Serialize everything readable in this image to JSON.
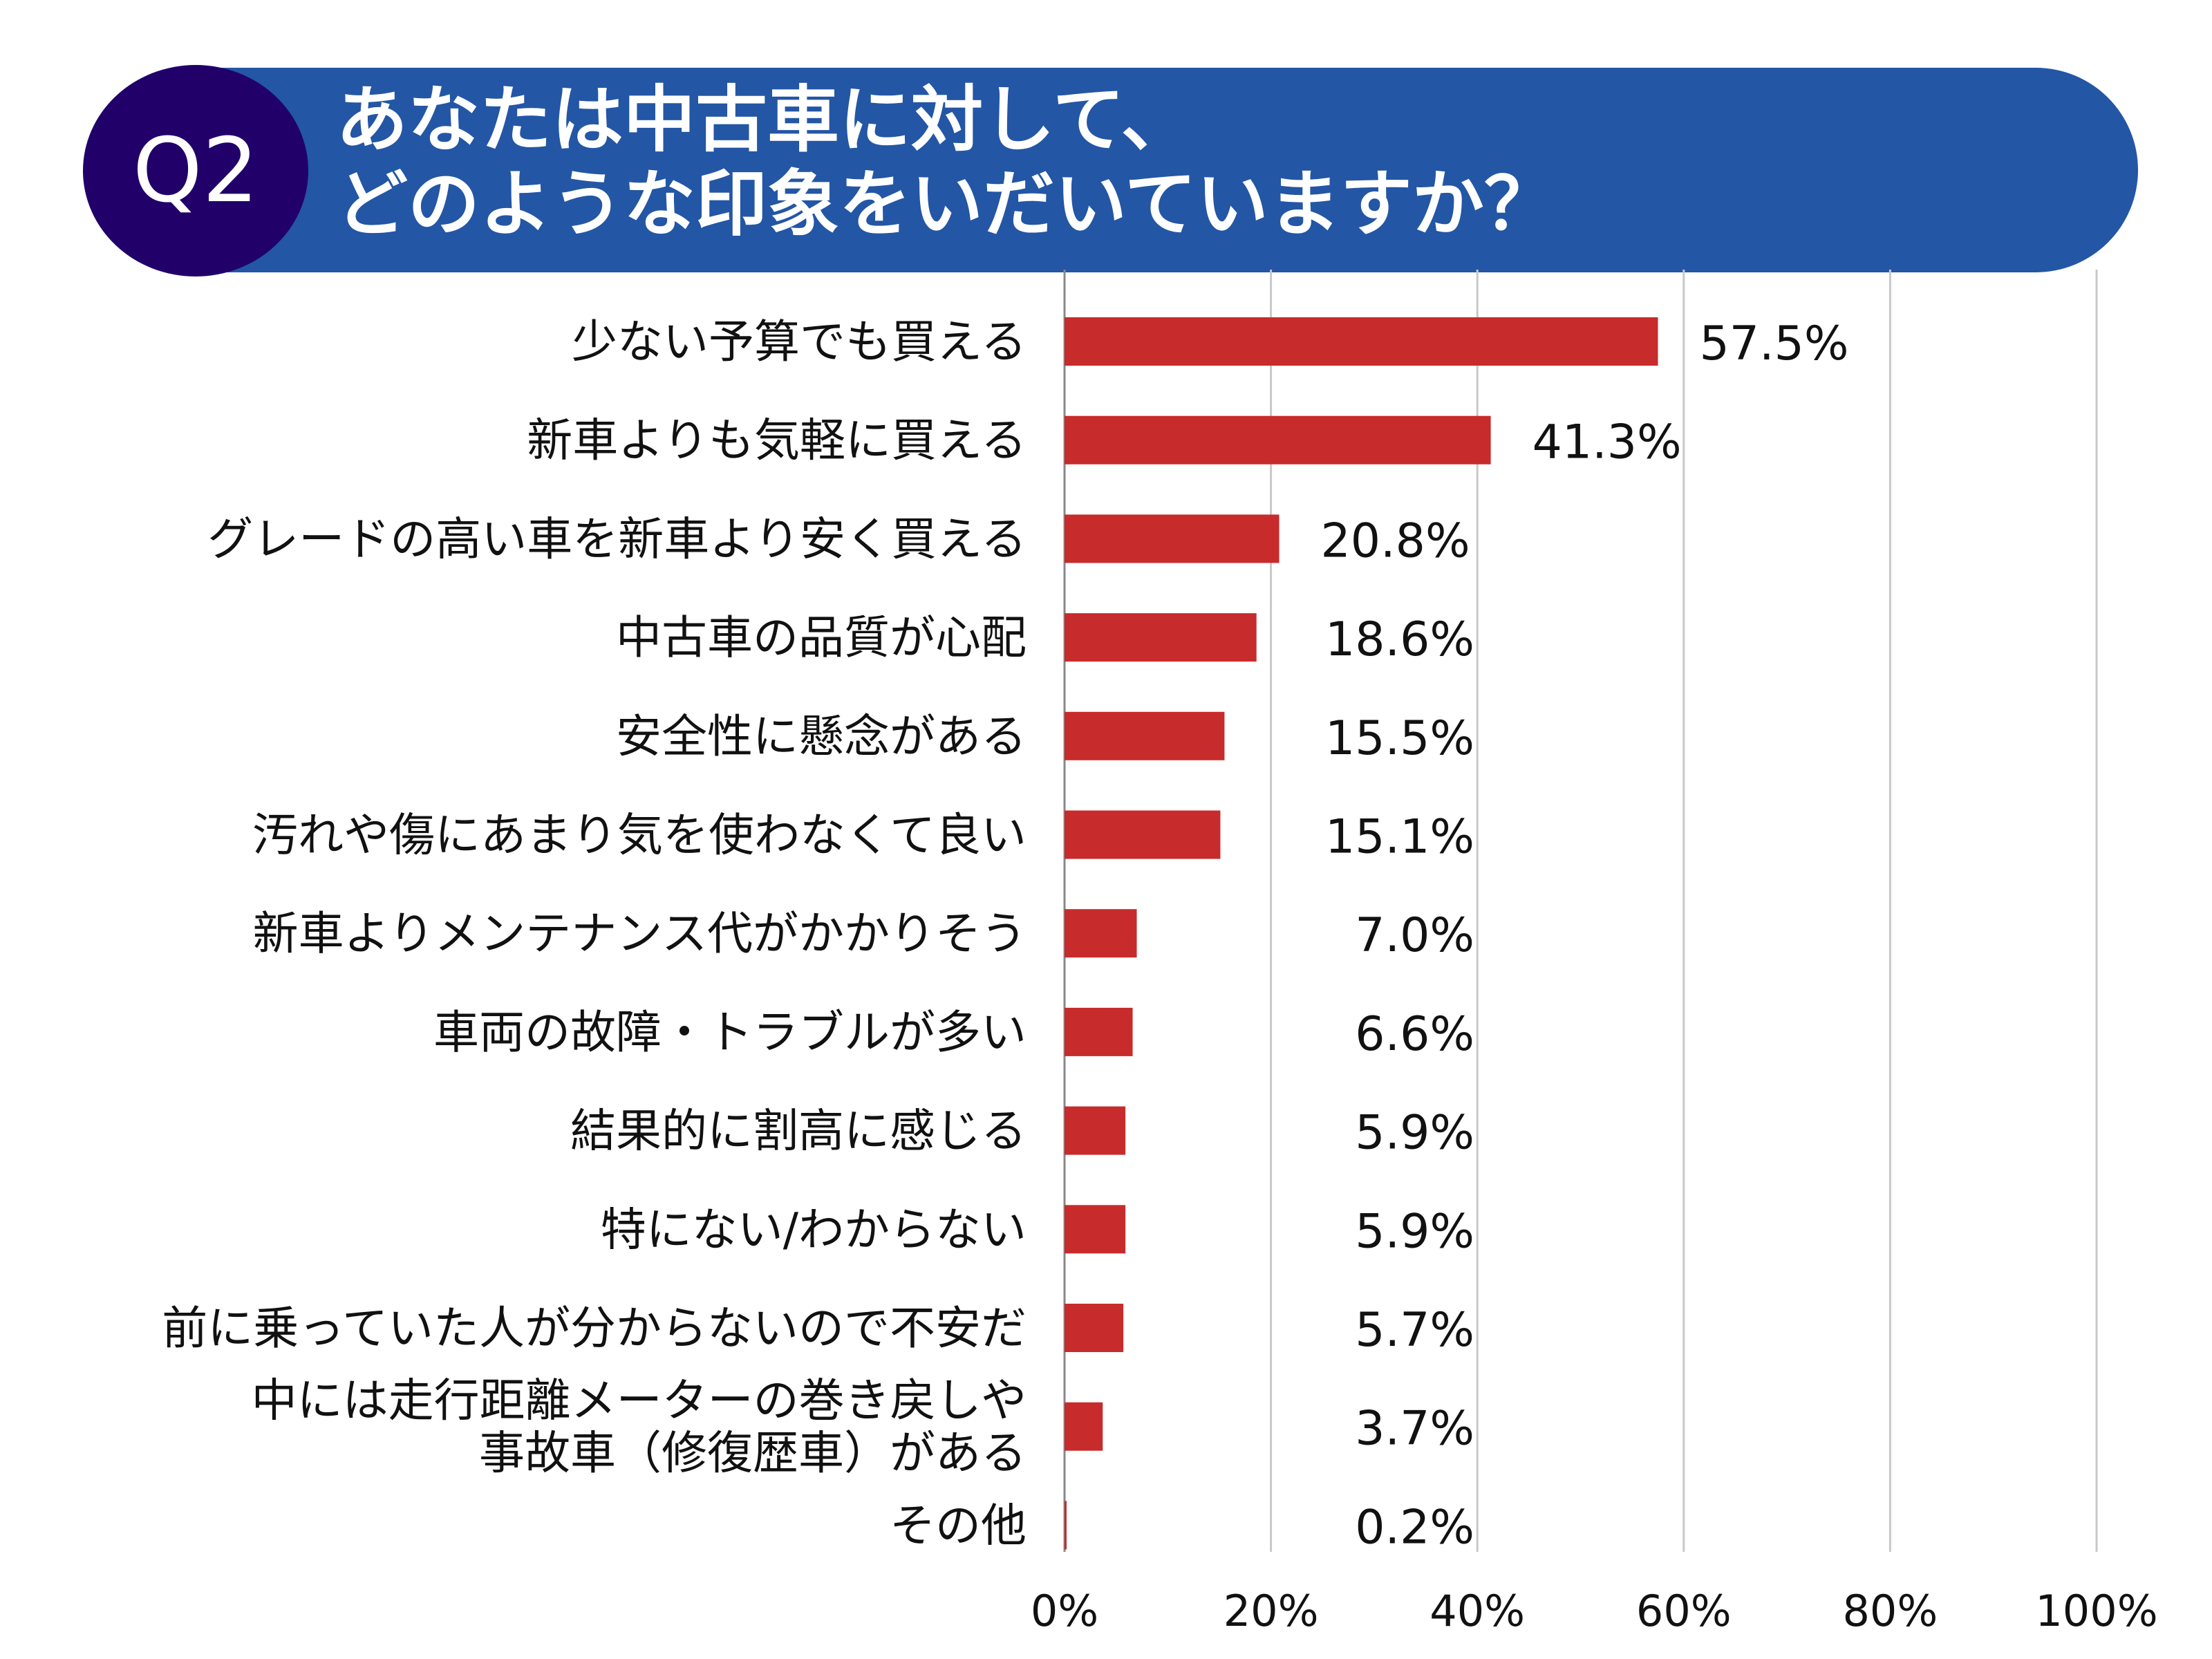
{
  "header": {
    "badge": "Q2",
    "title_line1": "あなたは中古車に対して、",
    "title_line2": "どのような印象をいだいていますか？",
    "colors": {
      "banner": "#2356a5",
      "badge": "#21006a"
    }
  },
  "chart_data": {
    "type": "bar",
    "orientation": "horizontal",
    "categories": [
      [
        "少ない予算でも買える"
      ],
      [
        "新車よりも気軽に買える"
      ],
      [
        "グレードの高い車を新車より安く買える"
      ],
      [
        "中古車の品質が心配"
      ],
      [
        "安全性に懸念がある"
      ],
      [
        "汚れや傷にあまり気を使わなくて良い"
      ],
      [
        "新車よりメンテナンス代がかかりそう"
      ],
      [
        "車両の故障・トラブルが多い"
      ],
      [
        "結果的に割高に感じる"
      ],
      [
        "特にない/わからない"
      ],
      [
        "前に乗っていた人が分からないので不安だ"
      ],
      [
        "中には走行距離メーターの巻き戻しや",
        "事故車（修復歴車）がある"
      ],
      [
        "その他"
      ]
    ],
    "values": [
      57.5,
      41.3,
      20.8,
      18.6,
      15.5,
      15.1,
      7.0,
      6.6,
      5.9,
      5.9,
      5.7,
      3.7,
      0.2
    ],
    "value_labels": [
      "57.5%",
      "41.3%",
      "20.8%",
      "18.6%",
      "15.5%",
      "15.1%",
      "7.0%",
      "6.6%",
      "5.9%",
      "5.9%",
      "5.7%",
      "3.7%",
      "0.2%"
    ],
    "xlim": [
      0,
      100
    ],
    "xticks": [
      "0%",
      "20%",
      "40%",
      "60%",
      "80%",
      "100%"
    ],
    "grid": true,
    "bar_color": "#c82b2b"
  }
}
